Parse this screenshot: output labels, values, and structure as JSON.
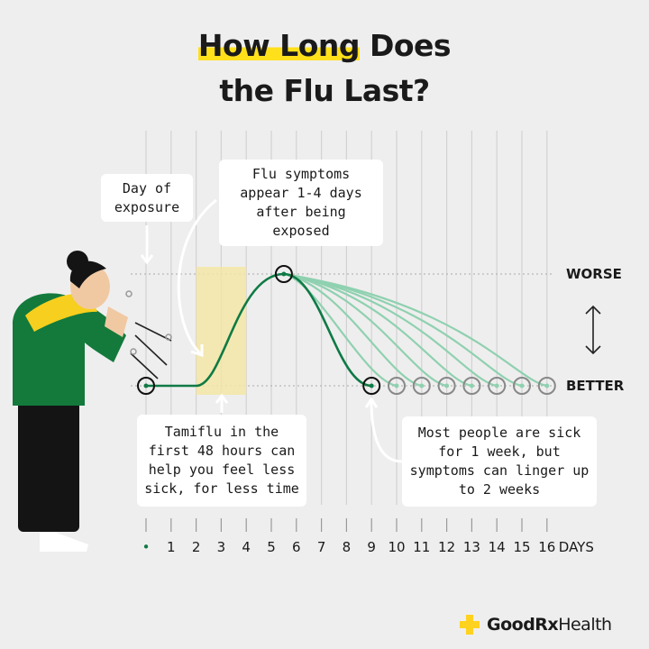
{
  "title": {
    "highlight": "How Long",
    "line1_rest": " Does",
    "line2": "the Flu Last?"
  },
  "callouts": {
    "exposure": "Day of exposure",
    "symptoms": "Flu symptoms appear 1-4 days after being exposed",
    "tamiflu": "Tamiflu in the first 48 hours can help you feel less sick, for less time",
    "duration": "Most people are sick for 1 week, but symptoms can linger up to 2 weeks"
  },
  "brand": {
    "name_bold": "GoodRx",
    "name_rest": " Health",
    "icon": "plus-icon"
  },
  "colors": {
    "main_curve": "#0f7a45",
    "alt_curves": "#8fd1b0",
    "highlight": "#f3e6a6",
    "accent": "#ffe01b",
    "background": "#efeeee"
  },
  "chart_data": {
    "type": "line",
    "xlabel": "DAYS",
    "x_ticks": [
      "•",
      "1",
      "2",
      "3",
      "4",
      "5",
      "6",
      "7",
      "8",
      "9",
      "10",
      "11",
      "12",
      "13",
      "14",
      "15",
      "16"
    ],
    "xlim": [
      0,
      16
    ],
    "y_levels": {
      "top": "WORSE",
      "bottom": "BETTER"
    },
    "ylim": [
      0,
      1
    ],
    "grid": "vertical",
    "main_series": {
      "points": [
        [
          0,
          0
        ],
        [
          2,
          0
        ],
        [
          5.5,
          1
        ],
        [
          9,
          0
        ]
      ]
    },
    "alternate_recovery_days": [
      10,
      11,
      12,
      13,
      14,
      15,
      16
    ],
    "tamiflu_window_days": [
      2,
      4
    ],
    "peak_day": 5.5
  }
}
